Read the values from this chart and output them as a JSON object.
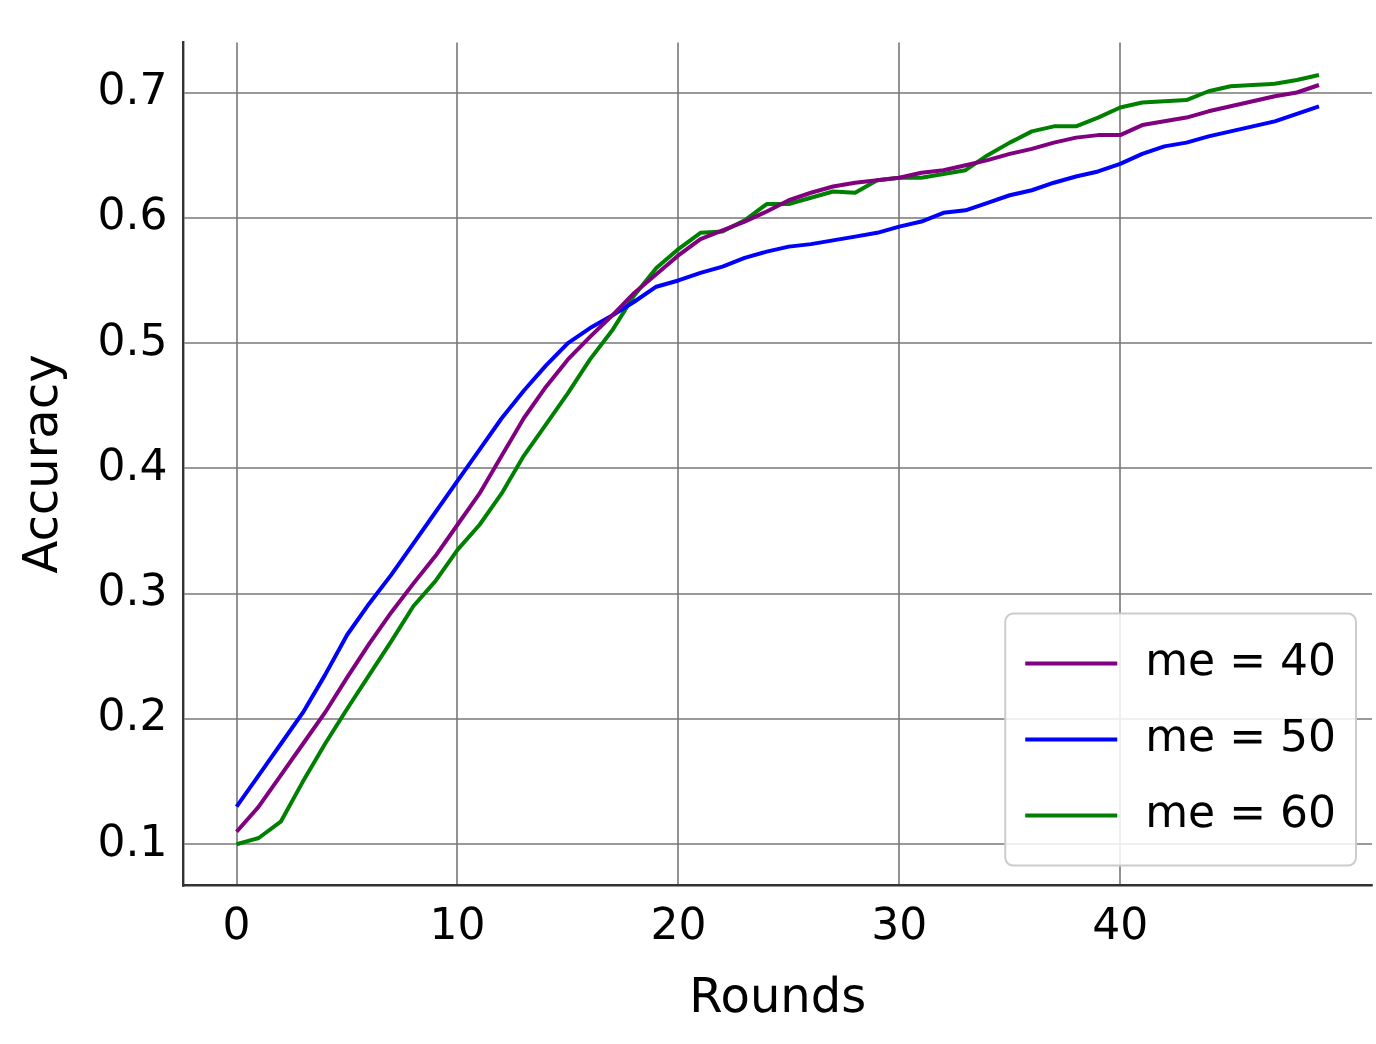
{
  "chart_data": {
    "type": "line",
    "xlabel": "Rounds",
    "ylabel": "Accuracy",
    "x": [
      0,
      1,
      2,
      3,
      4,
      5,
      6,
      7,
      8,
      9,
      10,
      11,
      12,
      13,
      14,
      15,
      16,
      17,
      18,
      19,
      20,
      21,
      22,
      23,
      24,
      25,
      26,
      27,
      28,
      29,
      30,
      31,
      32,
      33,
      34,
      35,
      36,
      37,
      38,
      39,
      40,
      41,
      42,
      43,
      44,
      45,
      46,
      47,
      48,
      49
    ],
    "series": [
      {
        "name": "me = 40",
        "color": "#800080",
        "values": [
          0.11,
          0.13,
          0.155,
          0.18,
          0.205,
          0.233,
          0.26,
          0.285,
          0.308,
          0.33,
          0.355,
          0.38,
          0.41,
          0.44,
          0.465,
          0.487,
          0.505,
          0.522,
          0.54,
          0.555,
          0.57,
          0.583,
          0.59,
          0.597,
          0.605,
          0.614,
          0.62,
          0.625,
          0.628,
          0.63,
          0.632,
          0.636,
          0.638,
          0.642,
          0.646,
          0.651,
          0.655,
          0.66,
          0.664,
          0.666,
          0.666,
          0.674,
          0.677,
          0.68,
          0.685,
          0.689,
          0.693,
          0.697,
          0.7,
          0.706
        ]
      },
      {
        "name": "me = 50",
        "color": "#0000ff",
        "values": [
          0.13,
          0.155,
          0.18,
          0.205,
          0.235,
          0.267,
          0.292,
          0.315,
          0.34,
          0.365,
          0.39,
          0.415,
          0.44,
          0.462,
          0.482,
          0.5,
          0.512,
          0.522,
          0.533,
          0.545,
          0.55,
          0.556,
          0.561,
          0.568,
          0.573,
          0.577,
          0.579,
          0.582,
          0.585,
          0.588,
          0.593,
          0.597,
          0.604,
          0.606,
          0.612,
          0.618,
          0.622,
          0.628,
          0.633,
          0.637,
          0.643,
          0.651,
          0.657,
          0.66,
          0.665,
          0.669,
          0.673,
          0.677,
          0.683,
          0.689
        ]
      },
      {
        "name": "me = 60",
        "color": "#008000",
        "values": [
          0.1,
          0.105,
          0.118,
          0.15,
          0.18,
          0.208,
          0.235,
          0.262,
          0.29,
          0.31,
          0.335,
          0.355,
          0.38,
          0.41,
          0.435,
          0.46,
          0.487,
          0.51,
          0.538,
          0.56,
          0.575,
          0.588,
          0.589,
          0.598,
          0.611,
          0.611,
          0.616,
          0.621,
          0.62,
          0.63,
          0.632,
          0.632,
          0.635,
          0.638,
          0.65,
          0.66,
          0.669,
          0.673,
          0.673,
          0.68,
          0.688,
          0.692,
          0.693,
          0.694,
          0.701,
          0.705,
          0.706,
          0.707,
          0.71,
          0.714
        ]
      }
    ],
    "xlim": [
      -2.4,
      51.4
    ],
    "xticks": [
      0,
      10,
      20,
      30,
      40
    ],
    "ylim": [
      0.067,
      0.74
    ],
    "yticks": [
      0.1,
      0.2,
      0.3,
      0.4,
      0.5,
      0.6,
      0.7
    ],
    "grid": true,
    "legend": "bottom right",
    "marker": "none",
    "line_style": "solid"
  }
}
